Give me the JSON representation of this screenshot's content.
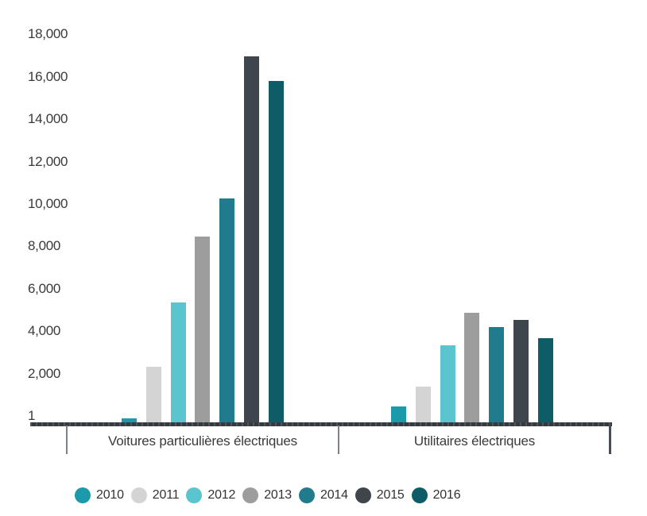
{
  "chart_data": {
    "type": "bar",
    "categories": [
      "Voitures particulières électriques",
      "Utilitaires électriques"
    ],
    "series": [
      {
        "name": "2010",
        "color": "#1b9aac",
        "pattern": "none",
        "values": [
          184,
          760
        ]
      },
      {
        "name": "2011",
        "color": "#d4d4d4",
        "pattern": "dots",
        "values": [
          2630,
          1683
        ]
      },
      {
        "name": "2012",
        "color": "#5bc5cf",
        "pattern": "none",
        "values": [
          5663,
          3651
        ]
      },
      {
        "name": "2013",
        "color": "#9d9d9d",
        "pattern": "diagonal",
        "values": [
          8779,
          5175
        ]
      },
      {
        "name": "2014",
        "color": "#207c8c",
        "pattern": "none",
        "values": [
          10560,
          4500
        ]
      },
      {
        "name": "2015",
        "color": "#3f454d",
        "pattern": "none",
        "values": [
          17266,
          4850
        ]
      },
      {
        "name": "2016",
        "color": "#0d5c66",
        "pattern": "none",
        "values": [
          16100,
          3960
        ]
      }
    ],
    "y_ticks": [
      {
        "label": "18,000",
        "value": 18000
      },
      {
        "label": "16,000",
        "value": 16000
      },
      {
        "label": "14,000",
        "value": 14000
      },
      {
        "label": "12,000",
        "value": 12000
      },
      {
        "label": "10,000",
        "value": 10000
      },
      {
        "label": "8,000",
        "value": 8000
      },
      {
        "label": "6,000",
        "value": 6000
      },
      {
        "label": "4,000",
        "value": 4000
      },
      {
        "label": "2,000",
        "value": 2000
      },
      {
        "label": "1",
        "value": 1
      }
    ],
    "ylim": [
      0,
      18000
    ],
    "grid": false,
    "legend_position": "bottom",
    "axis_color": "#3c424a",
    "divider_color": "#7d838a",
    "text_color": "#3a3a3a"
  }
}
